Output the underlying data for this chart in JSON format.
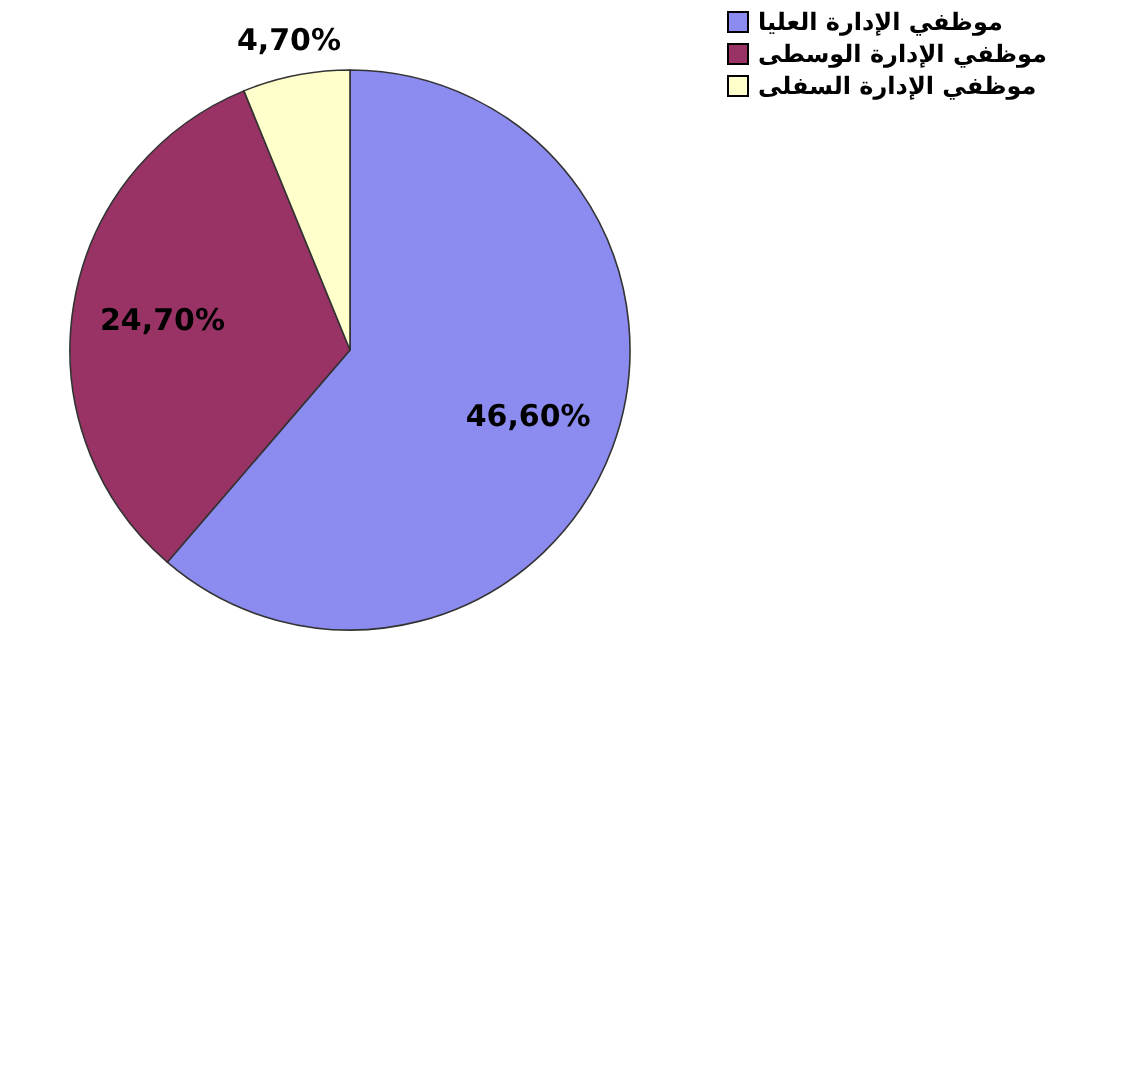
{
  "chart_data": {
    "type": "pie",
    "categories": [
      "موظفي الإدارة العليا",
      "موظفي الإدارة الوسطى",
      "موظفي الإدارة السفلى"
    ],
    "values": [
      46.6,
      24.7,
      4.7
    ],
    "colors": [
      "#8c8cf0",
      "#993366",
      "#ffffcc"
    ],
    "value_labels": [
      "46,60%",
      "24,70%",
      "4,70%"
    ],
    "legend": "right"
  }
}
